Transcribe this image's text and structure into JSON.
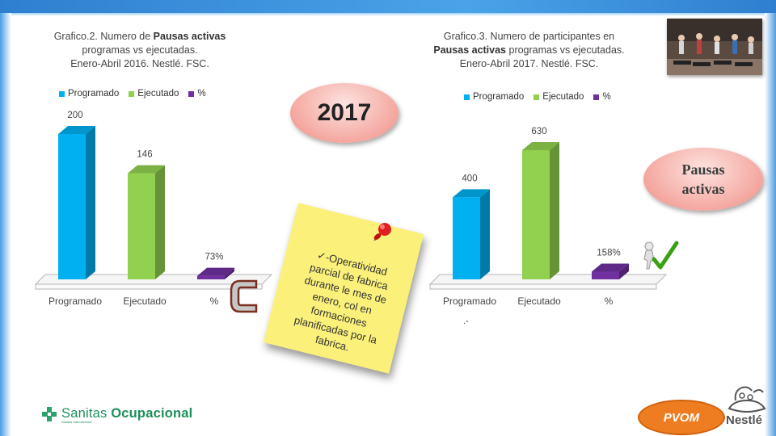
{
  "chart_data": [
    {
      "type": "bar",
      "title_parts": [
        "Grafico.2. Numero de ",
        "Pausas activas",
        " programas vs ejecutadas.",
        "Enero-Abril 2016. Nestlé. FSC."
      ],
      "categories": [
        "Programado",
        "Ejecutado",
        "%"
      ],
      "values": [
        200,
        146,
        73
      ],
      "data_labels": [
        "200",
        "146",
        "73%"
      ],
      "colors": [
        "#00b0f0",
        "#92d050",
        "#7030a0"
      ],
      "legend": [
        "Programado",
        "Ejecutado",
        "%"
      ],
      "legend_position": "top",
      "ylim": [
        0,
        200
      ],
      "grid": false
    },
    {
      "type": "bar",
      "title_parts": [
        "Grafico.3. Numero de  participantes en",
        "Pausas activas",
        " programas vs ejecutadas.",
        "Enero-Abril 2017. Nestlé. FSC."
      ],
      "categories": [
        "Programado",
        "Ejecutado",
        "%"
      ],
      "values": [
        400,
        630,
        158
      ],
      "data_labels": [
        "400",
        "630",
        "158%"
      ],
      "colors": [
        "#00b0f0",
        "#92d050",
        "#7030a0"
      ],
      "legend": [
        "Programado",
        "Ejecutado",
        "%"
      ],
      "legend_position": "top",
      "ylim": [
        0,
        630
      ],
      "grid": false
    }
  ],
  "badges": {
    "year": "2017",
    "pausas_line1": "Pausas",
    "pausas_line2": "activas",
    "pvom": "PVOM"
  },
  "note": {
    "text": "✓-Operatividad parcial de fabrica durante le mes de enero, col en formaciones planificadas por la fabrica."
  },
  "misc": {
    "dot_mark": ".-"
  },
  "logos": {
    "sanitas_name_1": "Sanitas",
    "sanitas_name_2": "Ocupacional",
    "sanitas_sub": "Sanitas Internacional",
    "nestle": "Nestlé"
  }
}
